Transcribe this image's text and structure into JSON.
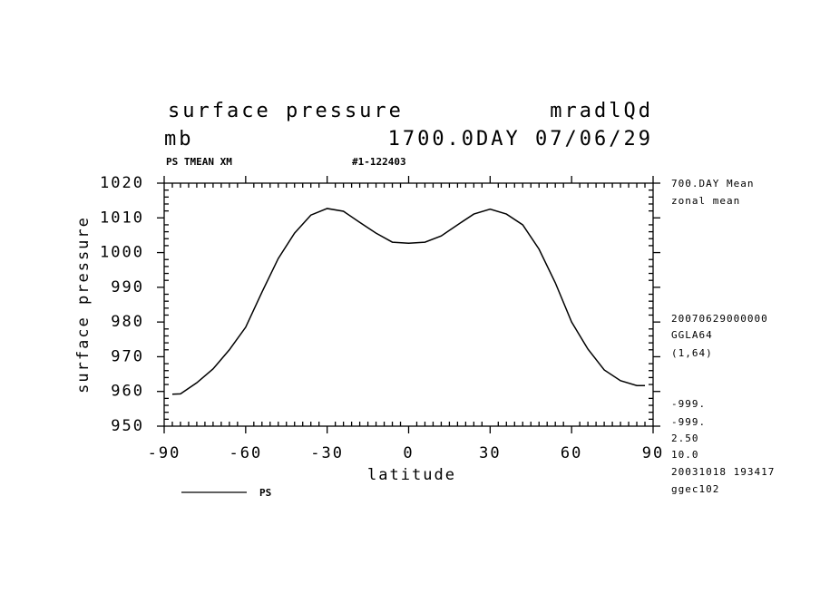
{
  "chart_data": {
    "type": "line",
    "title": "surface pressure",
    "title_right": "mradlQd",
    "subtitle": "mb",
    "subtitle_right": "1700.0DAY 07/06/29",
    "header_left": "PS TMEAN XM",
    "header_mid": "#1-122403",
    "side_labels": [
      "700.DAY Mean",
      "zonal mean",
      "20070629000000",
      "GGLA64",
      "(1,64)",
      "-999.",
      "-999.",
      "2.50",
      "10.0",
      "20031018 193417",
      "ggec102"
    ],
    "xlabel": "latitude",
    "ylabel": "surface pressure",
    "x": [
      -87,
      -84,
      -78,
      -72,
      -66,
      -60,
      -54,
      -48,
      -42,
      -36,
      -30,
      -24,
      -18,
      -12,
      -6,
      0,
      6,
      12,
      18,
      24,
      30,
      36,
      42,
      48,
      54,
      60,
      66,
      72,
      78,
      84,
      87
    ],
    "series": [
      {
        "name": "PS",
        "color": "#000000",
        "values": [
          959.2,
          959.3,
          962.5,
          966.5,
          972.0,
          978.5,
          988.6,
          998.3,
          1005.6,
          1010.8,
          1012.7,
          1011.9,
          1008.7,
          1005.6,
          1003.0,
          1002.7,
          1003.0,
          1004.8,
          1008.0,
          1011.1,
          1012.5,
          1011.1,
          1008.0,
          1001.0,
          991.3,
          980.0,
          972.2,
          966.2,
          963.1,
          961.7,
          961.7
        ]
      }
    ],
    "xlim": [
      -90,
      90
    ],
    "xticks": [
      -90,
      -60,
      -30,
      0,
      30,
      60,
      90
    ],
    "ylim": [
      950,
      1020
    ],
    "yticks": [
      950,
      960,
      970,
      980,
      990,
      1000,
      1010,
      1020
    ]
  }
}
